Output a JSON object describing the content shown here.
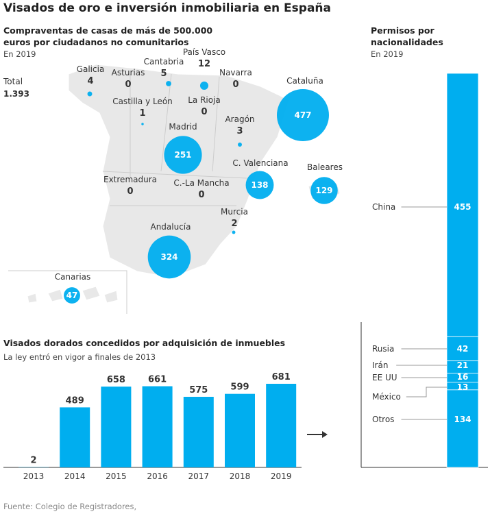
{
  "title": "Visados de oro e inversión inmobiliaria en España",
  "source": "Fuente: Colegio de Registradores,",
  "chart_data": [
    {
      "type": "bubble-map",
      "title": "Compraventas de casas de más de 500.000 euros por ciudadanos no comunitarios",
      "subtitle": "En 2019",
      "total_label": "Total",
      "total": 1393,
      "total_value_label": "1.393",
      "color": "#00aeef",
      "categories": [
        "Galicia",
        "Asturias",
        "Cantabria",
        "País Vasco",
        "Navarra",
        "Cataluña",
        "Castilla y León",
        "La Rioja",
        "Aragón",
        "Madrid",
        "C. Valenciana",
        "Baleares",
        "Extremadura",
        "C.-La Mancha",
        "Murcia",
        "Andalucía",
        "Canarias"
      ],
      "values": [
        4,
        0,
        5,
        12,
        0,
        477,
        1,
        0,
        3,
        251,
        138,
        129,
        0,
        0,
        2,
        324,
        47
      ]
    },
    {
      "type": "bar",
      "title": "Visados dorados concedidos por adquisición de inmuebles",
      "subtitle": "La ley entró en vigor a finales de 2013",
      "color": "#00aeef",
      "categories": [
        "2013",
        "2014",
        "2015",
        "2016",
        "2017",
        "2018",
        "2019"
      ],
      "values": [
        2,
        489,
        658,
        661,
        575,
        599,
        681
      ]
    },
    {
      "type": "stacked-bar",
      "title": "Permisos por nacionalidades",
      "subtitle": "En 2019",
      "color": "#00aeef",
      "categories": [
        "China",
        "Rusia",
        "Irán",
        "EE UU",
        "México",
        "Otros"
      ],
      "values": [
        455,
        42,
        21,
        16,
        13,
        134
      ]
    }
  ]
}
